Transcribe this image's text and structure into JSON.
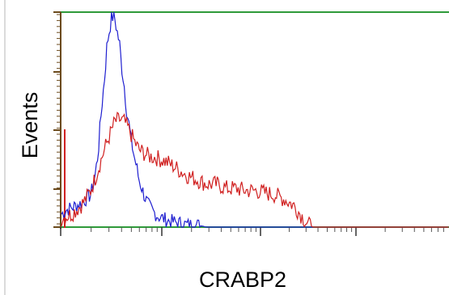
{
  "chart_data": {
    "type": "area",
    "title": "",
    "xlabel": "CRABP2",
    "ylabel": "Events",
    "x_scale": "log",
    "grid": false,
    "legend": "none",
    "series": [
      {
        "color": "#1f1fd0",
        "x": [
          0,
          0.05,
          0.1,
          0.15,
          0.2,
          0.25,
          0.3,
          0.33,
          0.35,
          0.38,
          0.4,
          0.42,
          0.45,
          0.47,
          0.5,
          0.52,
          0.55,
          0.57,
          0.6,
          0.62,
          0.65,
          0.67,
          0.7,
          0.72,
          0.75,
          0.78,
          0.8,
          0.83,
          0.86,
          0.9,
          0.95,
          1.0,
          1.05,
          1.1,
          1.2,
          1.3,
          1.4,
          1.5,
          2.0,
          3.0,
          4.0
        ],
        "y": [
          0.06,
          0.08,
          0.09,
          0.1,
          0.11,
          0.13,
          0.15,
          0.2,
          0.25,
          0.35,
          0.48,
          0.58,
          0.72,
          0.85,
          0.93,
          0.98,
          0.97,
          0.92,
          0.85,
          0.75,
          0.65,
          0.55,
          0.47,
          0.4,
          0.33,
          0.27,
          0.22,
          0.18,
          0.14,
          0.1,
          0.07,
          0.05,
          0.04,
          0.03,
          0.02,
          0.01,
          0.01,
          0.0,
          0.0,
          0.0,
          0.0
        ]
      },
      {
        "color": "#d02020",
        "x": [
          0,
          0.05,
          0.1,
          0.15,
          0.2,
          0.25,
          0.3,
          0.35,
          0.4,
          0.45,
          0.5,
          0.55,
          0.6,
          0.65,
          0.7,
          0.75,
          0.8,
          0.9,
          1.0,
          1.1,
          1.2,
          1.3,
          1.4,
          1.5,
          1.6,
          1.7,
          1.8,
          1.9,
          2.0,
          2.1,
          2.2,
          2.3,
          2.4,
          2.45,
          2.5,
          2.55,
          2.6,
          3.0,
          4.0
        ],
        "y": [
          0.04,
          0.05,
          0.06,
          0.08,
          0.1,
          0.13,
          0.17,
          0.23,
          0.3,
          0.37,
          0.43,
          0.49,
          0.5,
          0.49,
          0.45,
          0.4,
          0.36,
          0.33,
          0.32,
          0.3,
          0.27,
          0.24,
          0.22,
          0.2,
          0.2,
          0.18,
          0.18,
          0.17,
          0.17,
          0.16,
          0.15,
          0.13,
          0.1,
          0.07,
          0.04,
          0.01,
          0.0,
          0.0,
          0.0
        ]
      }
    ]
  }
}
